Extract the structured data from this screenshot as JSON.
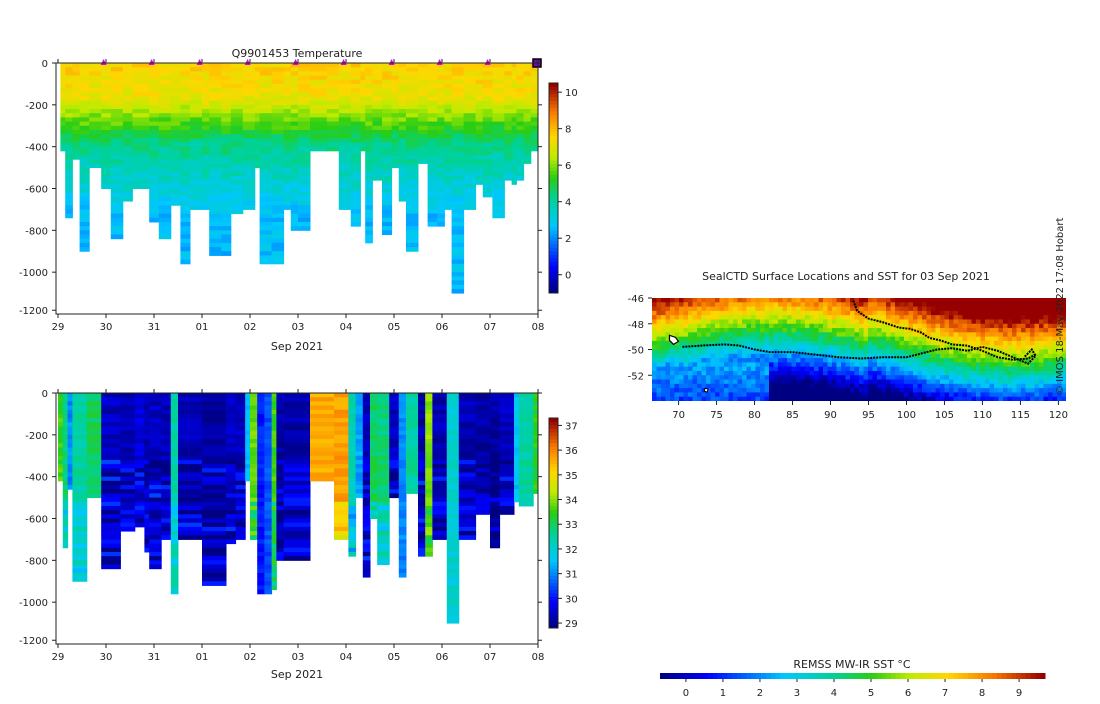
{
  "credit": "© IMOS 18-May-2022 17:08 Hobart",
  "date_ticks": [
    "29",
    "30",
    "31",
    "01",
    "02",
    "03",
    "04",
    "05",
    "06",
    "07",
    "08"
  ],
  "date_axis_label": "Sep 2021",
  "depth_ticks": [
    "0",
    "-200",
    "-400",
    "-600",
    "-800",
    "-1000",
    "-1200"
  ],
  "chart_data": [
    {
      "type": "heatmap",
      "title": "Q9901453  Temperature",
      "variable": "temperature",
      "x": [
        "29",
        "30",
        "31",
        "01",
        "02",
        "03",
        "04",
        "05",
        "06",
        "07",
        "08"
      ],
      "xlabel": "Sep 2021",
      "ylabel": "",
      "ylim": [
        -1200,
        0
      ],
      "yticks": [
        0,
        -200,
        -400,
        -600,
        -800,
        -1000,
        -1200
      ],
      "colorbar": {
        "ticks": [
          "0",
          "2",
          "4",
          "6",
          "8",
          "10"
        ],
        "range": [
          -1,
          10.5
        ]
      },
      "profiles": [
        {
          "day": 0.05,
          "depth": -420
        },
        {
          "day": 0.15,
          "depth": -740
        },
        {
          "day": 0.3,
          "depth": -460
        },
        {
          "day": 0.45,
          "depth": -890
        },
        {
          "day": 0.65,
          "depth": -500
        },
        {
          "day": 0.9,
          "depth": -600
        },
        {
          "day": 1.1,
          "depth": -830
        },
        {
          "day": 1.35,
          "depth": -650
        },
        {
          "day": 1.55,
          "depth": -600
        },
        {
          "day": 1.9,
          "depth": -750
        },
        {
          "day": 2.1,
          "depth": -830
        },
        {
          "day": 2.35,
          "depth": -680
        },
        {
          "day": 2.55,
          "depth": -950
        },
        {
          "day": 2.75,
          "depth": -700
        },
        {
          "day": 3.0,
          "depth": -700
        },
        {
          "day": 3.15,
          "depth": -920
        },
        {
          "day": 3.4,
          "depth": -920
        },
        {
          "day": 3.6,
          "depth": -720
        },
        {
          "day": 3.85,
          "depth": -700
        },
        {
          "day": 4.1,
          "depth": -500
        },
        {
          "day": 4.2,
          "depth": -950
        },
        {
          "day": 4.45,
          "depth": -960
        },
        {
          "day": 4.7,
          "depth": -700
        },
        {
          "day": 4.85,
          "depth": -800
        },
        {
          "day": 5.0,
          "depth": -800
        },
        {
          "day": 5.25,
          "depth": -410
        },
        {
          "day": 5.6,
          "depth": -410
        },
        {
          "day": 5.85,
          "depth": -700
        },
        {
          "day": 6.1,
          "depth": -780
        },
        {
          "day": 6.3,
          "depth": -420
        },
        {
          "day": 6.4,
          "depth": -860
        },
        {
          "day": 6.55,
          "depth": -560
        },
        {
          "day": 6.75,
          "depth": -810
        },
        {
          "day": 6.95,
          "depth": -500
        },
        {
          "day": 7.1,
          "depth": -650
        },
        {
          "day": 7.25,
          "depth": -890
        },
        {
          "day": 7.5,
          "depth": -470
        },
        {
          "day": 7.7,
          "depth": -770
        },
        {
          "day": 7.9,
          "depth": -780
        },
        {
          "day": 8.05,
          "depth": -700
        },
        {
          "day": 8.2,
          "depth": -1100
        },
        {
          "day": 8.45,
          "depth": -700
        },
        {
          "day": 8.7,
          "depth": -580
        },
        {
          "day": 8.85,
          "depth": -640
        },
        {
          "day": 9.05,
          "depth": -730
        },
        {
          "day": 9.3,
          "depth": -550
        },
        {
          "day": 9.45,
          "depth": -580
        },
        {
          "day": 9.55,
          "depth": -550
        },
        {
          "day": 9.7,
          "depth": -470
        },
        {
          "day": 9.85,
          "depth": -420
        }
      ],
      "markers": [
        0.95,
        1.95,
        2.95,
        3.95,
        4.95,
        5.95,
        6.95,
        7.95,
        8.95,
        9.95
      ]
    },
    {
      "type": "heatmap",
      "title": "",
      "variable": "salinity",
      "x": [
        "29",
        "30",
        "31",
        "01",
        "02",
        "03",
        "04",
        "05",
        "06",
        "07",
        "08"
      ],
      "xlabel": "Sep 2021",
      "ylabel": "",
      "ylim": [
        -1200,
        0
      ],
      "yticks": [
        0,
        -200,
        -400,
        -600,
        -800,
        -1000,
        -1200
      ],
      "colorbar": {
        "ticks": [
          "29",
          "30",
          "31",
          "32",
          "33",
          "34",
          "35",
          "36",
          "37"
        ],
        "range": [
          28.8,
          37.3
        ]
      },
      "columns": [
        {
          "x0": 0.0,
          "x1": 0.1,
          "depth": -420,
          "value": 33.6
        },
        {
          "x0": 0.1,
          "x1": 0.2,
          "depth": -740,
          "value": 32.8
        },
        {
          "x0": 0.2,
          "x1": 0.3,
          "depth": -460,
          "value": 31.0
        },
        {
          "x0": 0.3,
          "x1": 0.6,
          "depth": -890,
          "value": 32.5
        },
        {
          "x0": 0.6,
          "x1": 0.9,
          "depth": -500,
          "value": 33.0
        },
        {
          "x0": 0.9,
          "x1": 1.3,
          "depth": -830,
          "value": 29.3
        },
        {
          "x0": 1.3,
          "x1": 1.6,
          "depth": -650,
          "value": 29.2
        },
        {
          "x0": 1.6,
          "x1": 1.8,
          "depth": -640,
          "value": 29.5
        },
        {
          "x0": 1.8,
          "x1": 1.9,
          "depth": -750,
          "value": 29.2
        },
        {
          "x0": 1.9,
          "x1": 2.15,
          "depth": -830,
          "value": 29.3
        },
        {
          "x0": 2.15,
          "x1": 2.35,
          "depth": -700,
          "value": 29.2
        },
        {
          "x0": 2.35,
          "x1": 2.5,
          "depth": -950,
          "value": 32.5
        },
        {
          "x0": 2.5,
          "x1": 3.0,
          "depth": -700,
          "value": 29.2
        },
        {
          "x0": 3.0,
          "x1": 3.5,
          "depth": -920,
          "value": 29.1
        },
        {
          "x0": 3.5,
          "x1": 3.7,
          "depth": -720,
          "value": 29.3
        },
        {
          "x0": 3.7,
          "x1": 3.9,
          "depth": -700,
          "value": 29.3
        },
        {
          "x0": 3.9,
          "x1": 4.0,
          "depth": -410,
          "value": 31.5
        },
        {
          "x0": 4.0,
          "x1": 4.15,
          "depth": -700,
          "value": 33.8
        },
        {
          "x0": 4.15,
          "x1": 4.3,
          "depth": -950,
          "value": 30.0
        },
        {
          "x0": 4.3,
          "x1": 4.45,
          "depth": -960,
          "value": 30.5
        },
        {
          "x0": 4.45,
          "x1": 4.55,
          "depth": -940,
          "value": 33.6
        },
        {
          "x0": 4.55,
          "x1": 4.7,
          "depth": -800,
          "value": 29.1
        },
        {
          "x0": 4.7,
          "x1": 5.25,
          "depth": -800,
          "value": 29.2
        },
        {
          "x0": 5.25,
          "x1": 5.75,
          "depth": -410,
          "value": 35.7
        },
        {
          "x0": 5.75,
          "x1": 6.05,
          "depth": -700,
          "value": 35.8
        },
        {
          "x0": 6.05,
          "x1": 6.2,
          "depth": -780,
          "value": 32.3
        },
        {
          "x0": 6.2,
          "x1": 6.35,
          "depth": -500,
          "value": 31.2
        },
        {
          "x0": 6.35,
          "x1": 6.5,
          "depth": -870,
          "value": 29.3
        },
        {
          "x0": 6.5,
          "x1": 6.65,
          "depth": -600,
          "value": 33.0
        },
        {
          "x0": 6.65,
          "x1": 6.9,
          "depth": -810,
          "value": 32.8
        },
        {
          "x0": 6.9,
          "x1": 7.1,
          "depth": -500,
          "value": 29.3
        },
        {
          "x0": 7.1,
          "x1": 7.25,
          "depth": -880,
          "value": 31.0
        },
        {
          "x0": 7.25,
          "x1": 7.5,
          "depth": -470,
          "value": 32.5
        },
        {
          "x0": 7.5,
          "x1": 7.65,
          "depth": -770,
          "value": 29.2
        },
        {
          "x0": 7.65,
          "x1": 7.8,
          "depth": -780,
          "value": 34.0
        },
        {
          "x0": 7.8,
          "x1": 8.1,
          "depth": -700,
          "value": 29.2
        },
        {
          "x0": 8.1,
          "x1": 8.35,
          "depth": -1100,
          "value": 32.0
        },
        {
          "x0": 8.35,
          "x1": 8.7,
          "depth": -700,
          "value": 29.2
        },
        {
          "x0": 8.7,
          "x1": 9.0,
          "depth": -580,
          "value": 29.1
        },
        {
          "x0": 9.0,
          "x1": 9.2,
          "depth": -730,
          "value": 29.1
        },
        {
          "x0": 9.2,
          "x1": 9.5,
          "depth": -580,
          "value": 29.3
        },
        {
          "x0": 9.5,
          "x1": 9.6,
          "depth": -520,
          "value": 31.5
        },
        {
          "x0": 9.6,
          "x1": 9.9,
          "depth": -530,
          "value": 32.5
        },
        {
          "x0": 9.9,
          "x1": 10.0,
          "depth": -470,
          "value": 33.4
        }
      ]
    },
    {
      "type": "heatmap",
      "title": "SealCTD Surface Locations and SST for 03 Sep 2021",
      "variable": "sst",
      "xticks": [
        "70",
        "75",
        "80",
        "85",
        "90",
        "95",
        "100",
        "105",
        "110",
        "115",
        "120"
      ],
      "yticks": [
        "-46",
        "-48",
        "-50",
        "-52"
      ],
      "xlim": [
        66.5,
        121
      ],
      "ylim": [
        -54,
        -46
      ],
      "colorbar_label": "REMSS MW-IR SST °C",
      "colorbar": {
        "ticks": [
          "0",
          "1",
          "2",
          "3",
          "4",
          "5",
          "6",
          "7",
          "8",
          "9"
        ],
        "range": [
          -0.7,
          9.7
        ]
      },
      "track_a": [
        [
          93.0,
          -46.2
        ],
        [
          93.5,
          -47.0
        ],
        [
          95.0,
          -47.6
        ],
        [
          97.0,
          -47.9
        ],
        [
          99.0,
          -48.3
        ],
        [
          100.5,
          -48.4
        ],
        [
          102.0,
          -48.7
        ],
        [
          103.0,
          -49.1
        ],
        [
          104.5,
          -49.3
        ],
        [
          106.0,
          -49.6
        ],
        [
          108.0,
          -49.7
        ],
        [
          110.0,
          -50.1
        ],
        [
          112.0,
          -50.6
        ],
        [
          114.0,
          -50.8
        ],
        [
          116.0,
          -50.7
        ],
        [
          117.0,
          -50.4
        ]
      ],
      "track_b": [
        [
          70.5,
          -49.8
        ],
        [
          73.0,
          -49.7
        ],
        [
          76.0,
          -49.6
        ],
        [
          78.0,
          -49.7
        ],
        [
          80.0,
          -50.0
        ],
        [
          82.0,
          -50.2
        ],
        [
          85.0,
          -50.2
        ],
        [
          88.0,
          -50.4
        ],
        [
          91.0,
          -50.6
        ],
        [
          94.0,
          -50.7
        ],
        [
          97.0,
          -50.6
        ],
        [
          100.0,
          -50.6
        ],
        [
          102.0,
          -50.3
        ],
        [
          104.0,
          -50.0
        ],
        [
          106.0,
          -49.9
        ],
        [
          108.0,
          -50.1
        ],
        [
          110.0,
          -49.8
        ],
        [
          112.0,
          -50.1
        ],
        [
          114.0,
          -50.6
        ],
        [
          116.0,
          -51.1
        ],
        [
          117.0,
          -50.5
        ],
        [
          116.5,
          -50.0
        ],
        [
          115.5,
          -50.6
        ]
      ]
    }
  ]
}
